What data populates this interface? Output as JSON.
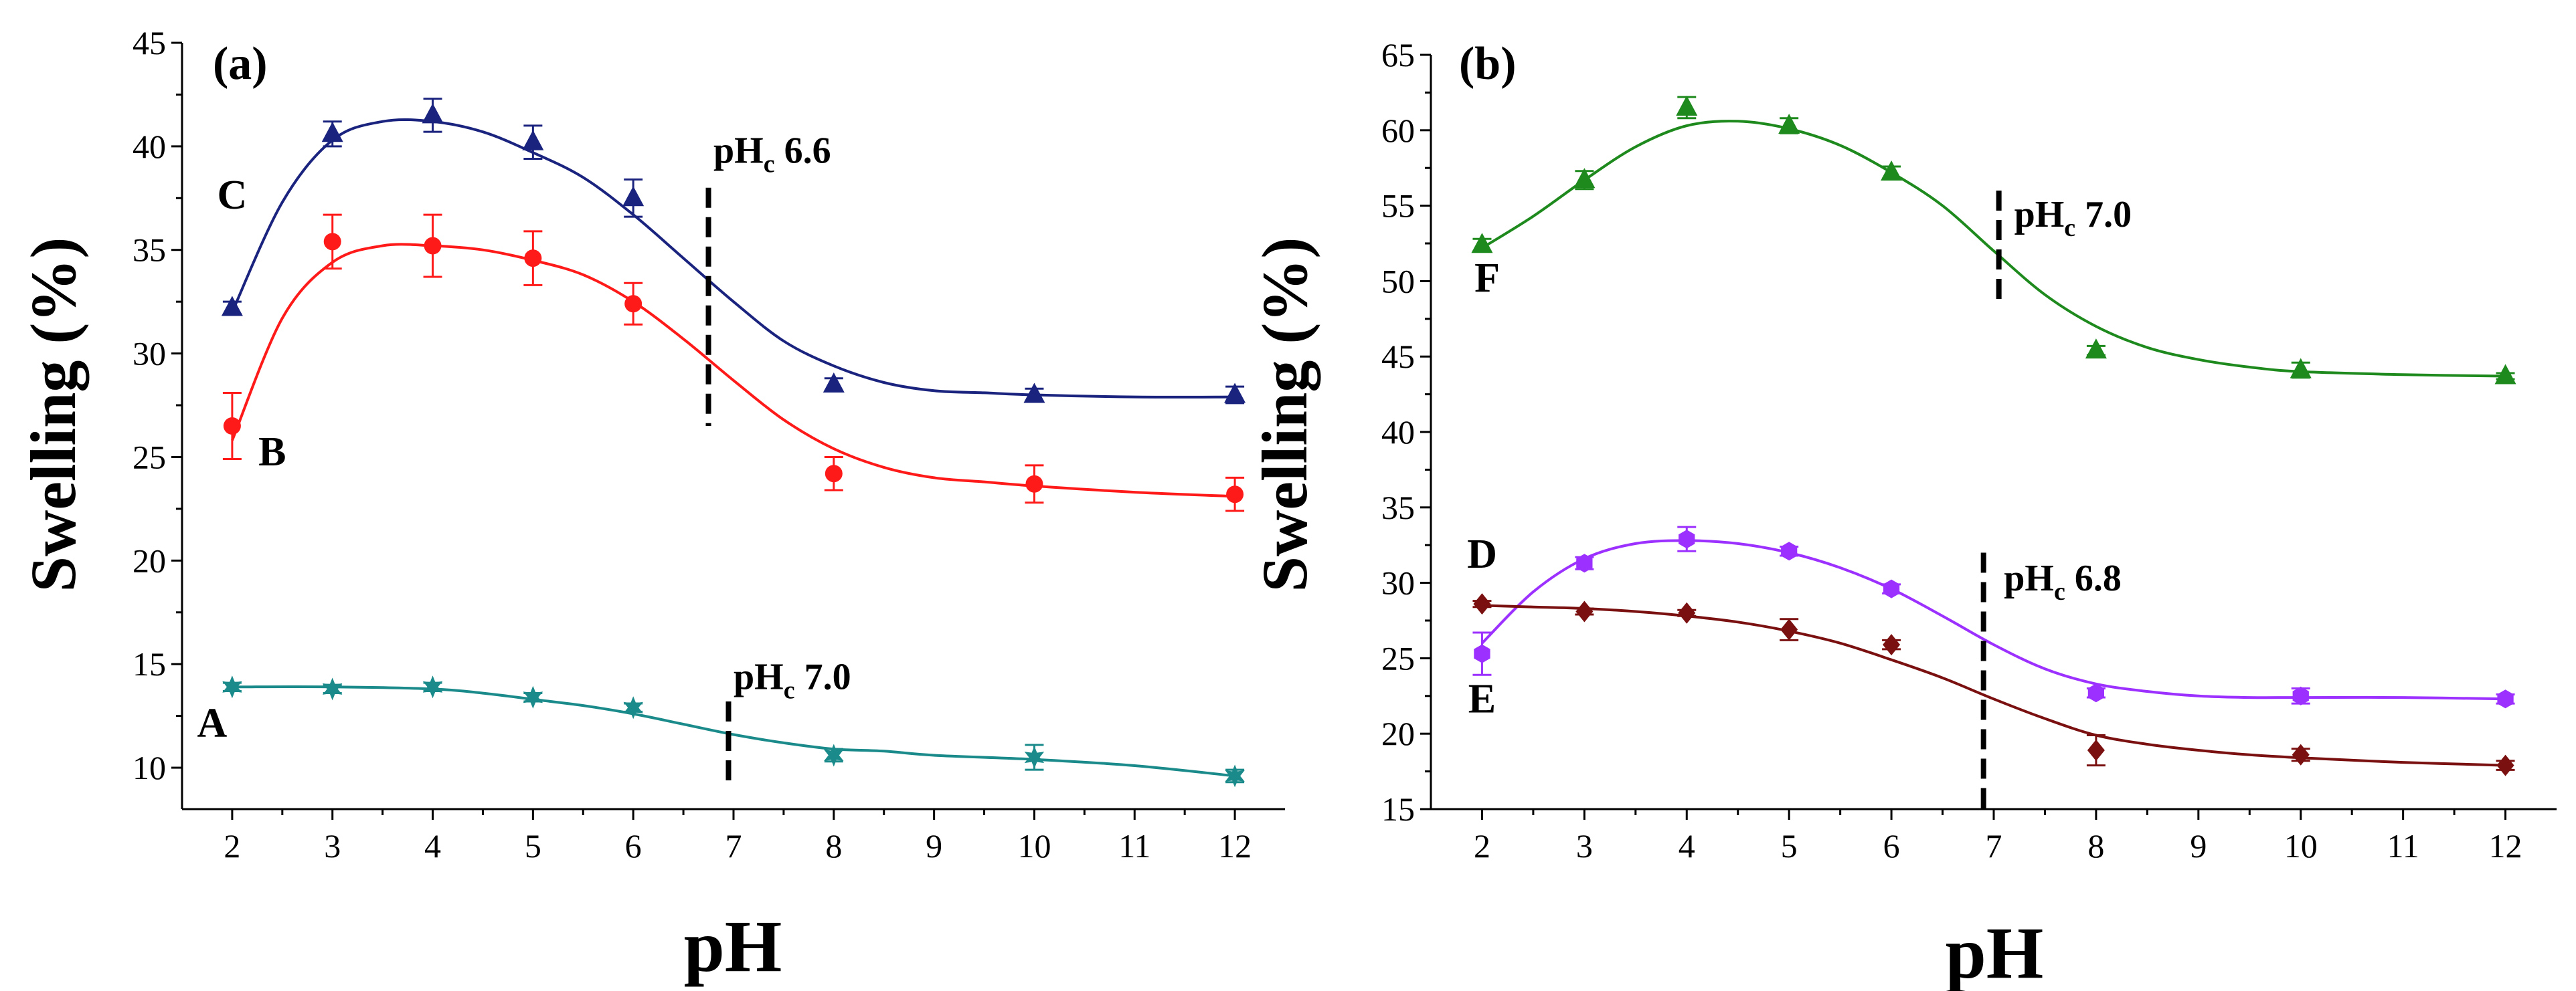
{
  "chart_data": [
    {
      "panel": "(a)",
      "type": "scatter",
      "xlabel": "pH",
      "ylabel": "Swelling (%)",
      "xlim": [
        1.5,
        12.5
      ],
      "ylim": [
        8,
        45
      ],
      "xticks": [
        2,
        3,
        4,
        5,
        6,
        7,
        8,
        9,
        10,
        11,
        12
      ],
      "yticks": [
        10,
        15,
        20,
        25,
        30,
        35,
        40,
        45
      ],
      "series": [
        {
          "name": "C",
          "color": "#1a237e",
          "marker": "triangle",
          "x": [
            2,
            3,
            4,
            5,
            6,
            8,
            10,
            12
          ],
          "values": [
            32.2,
            40.6,
            41.5,
            40.2,
            37.5,
            28.5,
            28.0,
            28.0
          ],
          "errors": [
            0.3,
            0.6,
            0.8,
            0.8,
            0.9,
            0.3,
            0.3,
            0.4
          ],
          "fit_x": [
            2,
            2.5,
            3,
            3.5,
            4,
            4.5,
            5,
            5.5,
            6,
            6.5,
            7,
            7.5,
            8,
            8.5,
            9,
            9.5,
            10,
            11,
            12
          ],
          "fit_y": [
            32.0,
            37.3,
            40.3,
            41.2,
            41.2,
            40.7,
            39.7,
            38.5,
            36.7,
            34.6,
            32.5,
            30.6,
            29.4,
            28.6,
            28.2,
            28.1,
            28.0,
            27.9,
            27.9
          ],
          "label_x": 2.0,
          "label_y": 37.0
        },
        {
          "name": "B",
          "color": "#ff1a1a",
          "marker": "circle",
          "x": [
            2,
            3,
            4,
            5,
            6,
            8,
            10,
            12
          ],
          "values": [
            26.5,
            35.4,
            35.2,
            34.6,
            32.4,
            24.2,
            23.7,
            23.2
          ],
          "errors": [
            1.6,
            1.3,
            1.5,
            1.3,
            1.0,
            0.8,
            0.9,
            0.8
          ],
          "fit_x": [
            2,
            2.5,
            3,
            3.5,
            4,
            4.5,
            5,
            5.5,
            6,
            6.5,
            7,
            7.5,
            8,
            8.5,
            9,
            9.5,
            10,
            11,
            12
          ],
          "fit_y": [
            25.8,
            31.7,
            34.4,
            35.2,
            35.2,
            35.0,
            34.5,
            33.8,
            32.5,
            30.7,
            28.7,
            26.8,
            25.4,
            24.5,
            24.0,
            23.8,
            23.6,
            23.3,
            23.1
          ],
          "label_x": 2.4,
          "label_y": 24.6
        },
        {
          "name": "A",
          "color": "#1a8a8a",
          "marker": "star",
          "x": [
            2,
            3,
            4,
            5,
            6,
            8,
            10,
            12
          ],
          "values": [
            13.9,
            13.8,
            13.9,
            13.4,
            12.9,
            10.6,
            10.5,
            9.6
          ],
          "errors": [
            0.2,
            0.2,
            0.2,
            0.2,
            0.2,
            0.3,
            0.6,
            0.3
          ],
          "fit_x": [
            2,
            3,
            4,
            4.5,
            5,
            5.5,
            6,
            6.5,
            7,
            7.5,
            8,
            8.5,
            9,
            10,
            11,
            12
          ],
          "fit_y": [
            13.9,
            13.9,
            13.8,
            13.6,
            13.3,
            13.0,
            12.6,
            12.1,
            11.6,
            11.2,
            10.9,
            10.8,
            10.6,
            10.4,
            10.1,
            9.6
          ],
          "label_x": 1.8,
          "label_y": 11.5
        }
      ],
      "annotations": [
        {
          "base": "pH",
          "sub": "c",
          "rest": " 6.6",
          "x": 6.8,
          "y": 39.2,
          "line_x": 6.75,
          "line_y": [
            26.5,
            38.0
          ]
        },
        {
          "base": "pH",
          "sub": "c",
          "rest": " 7.0",
          "x": 7.0,
          "y": 13.8,
          "line_x": 6.95,
          "line_y": [
            9.0,
            13.2
          ]
        }
      ]
    },
    {
      "panel": "(b)",
      "type": "scatter",
      "xlabel": "pH",
      "ylabel": "Swelling (%)",
      "xlim": [
        1.5,
        12.5
      ],
      "ylim": [
        15,
        65
      ],
      "xticks": [
        2,
        3,
        4,
        5,
        6,
        7,
        8,
        9,
        10,
        11,
        12
      ],
      "yticks": [
        15,
        20,
        25,
        30,
        35,
        40,
        45,
        50,
        55,
        60,
        65
      ],
      "series": [
        {
          "name": "F",
          "color": "#1e8a1e",
          "marker": "triangle",
          "x": [
            2,
            3,
            4,
            5,
            6,
            8,
            10,
            12
          ],
          "values": [
            52.4,
            56.7,
            61.5,
            60.3,
            57.2,
            45.4,
            44.1,
            43.7
          ],
          "errors": [
            0.4,
            0.6,
            0.7,
            0.5,
            0.4,
            0.3,
            0.5,
            0.2
          ],
          "fit_x": [
            2,
            2.5,
            3,
            3.5,
            4,
            4.5,
            5,
            5.5,
            6,
            6.5,
            7,
            7.5,
            8,
            8.5,
            9,
            9.5,
            10,
            11,
            12
          ],
          "fit_y": [
            52.2,
            54.3,
            56.7,
            58.9,
            60.3,
            60.6,
            60.1,
            59.0,
            57.2,
            55.0,
            52.0,
            49.1,
            47.0,
            45.6,
            44.8,
            44.3,
            44.0,
            43.8,
            43.7
          ],
          "label_x": 2.05,
          "label_y": 49.3
        },
        {
          "name": "D",
          "color": "#9b30ff",
          "marker": "hexagon",
          "x": [
            2,
            3,
            4,
            5,
            6,
            8,
            10,
            12
          ],
          "values": [
            25.3,
            31.3,
            32.9,
            32.1,
            29.6,
            22.7,
            22.5,
            22.3
          ],
          "errors": [
            1.4,
            0.4,
            0.8,
            0.3,
            0.3,
            0.3,
            0.5,
            0.3
          ],
          "fit_x": [
            2,
            2.5,
            3,
            3.5,
            4,
            4.5,
            5,
            5.5,
            6,
            6.5,
            7,
            7.5,
            8,
            8.5,
            9,
            9.5,
            10,
            11,
            12
          ],
          "fit_y": [
            26.0,
            29.4,
            31.6,
            32.6,
            32.8,
            32.6,
            32.0,
            31.0,
            29.6,
            27.8,
            25.9,
            24.3,
            23.3,
            22.8,
            22.5,
            22.4,
            22.4,
            22.4,
            22.3
          ],
          "label_x": 2.0,
          "label_y": 31.0
        },
        {
          "name": "E",
          "color": "#7a1010",
          "marker": "diamond",
          "x": [
            2,
            3,
            4,
            5,
            6,
            8,
            10,
            12
          ],
          "values": [
            28.6,
            28.1,
            28.0,
            26.9,
            25.9,
            18.9,
            18.6,
            17.9
          ],
          "errors": [
            0.2,
            0.2,
            0.2,
            0.7,
            0.3,
            1.0,
            0.4,
            0.3
          ],
          "fit_x": [
            2,
            2.5,
            3,
            3.5,
            4,
            4.5,
            5,
            5.5,
            6,
            6.5,
            7,
            7.5,
            8,
            8.5,
            9,
            9.5,
            10,
            11,
            12
          ],
          "fit_y": [
            28.5,
            28.4,
            28.3,
            28.1,
            27.8,
            27.4,
            26.8,
            26.0,
            24.9,
            23.7,
            22.3,
            21.0,
            19.9,
            19.3,
            18.9,
            18.6,
            18.4,
            18.1,
            17.9
          ],
          "label_x": 2.0,
          "label_y": 21.4
        }
      ],
      "annotations": [
        {
          "base": "pH",
          "sub": "c",
          "rest": " 7.0",
          "x": 7.2,
          "y": 53.6,
          "line_x": 7.05,
          "line_y": [
            48.5,
            56.0
          ]
        },
        {
          "base": "pH",
          "sub": "c",
          "rest": " 6.8",
          "x": 7.1,
          "y": 29.5,
          "line_x": 6.9,
          "line_y": [
            15.0,
            32.0
          ]
        }
      ]
    }
  ]
}
